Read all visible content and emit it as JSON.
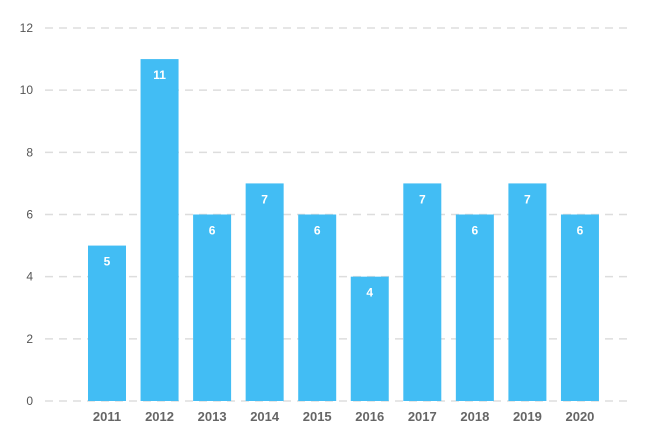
{
  "colors": {
    "bar": "#42bdf4",
    "grid": "#dddddd",
    "background": "#ffffff"
  },
  "chart_data": {
    "type": "bar",
    "title": "",
    "xlabel": "",
    "ylabel": "",
    "categories": [
      "2011",
      "2012",
      "2013",
      "2014",
      "2015",
      "2016",
      "2017",
      "2018",
      "2019",
      "2020"
    ],
    "values": [
      5,
      11,
      6,
      7,
      6,
      4,
      7,
      6,
      7,
      6
    ],
    "ylim": [
      0,
      12
    ],
    "yticks": [
      0,
      2,
      4,
      6,
      8,
      10,
      12
    ],
    "grid": true,
    "data_labels": true
  }
}
